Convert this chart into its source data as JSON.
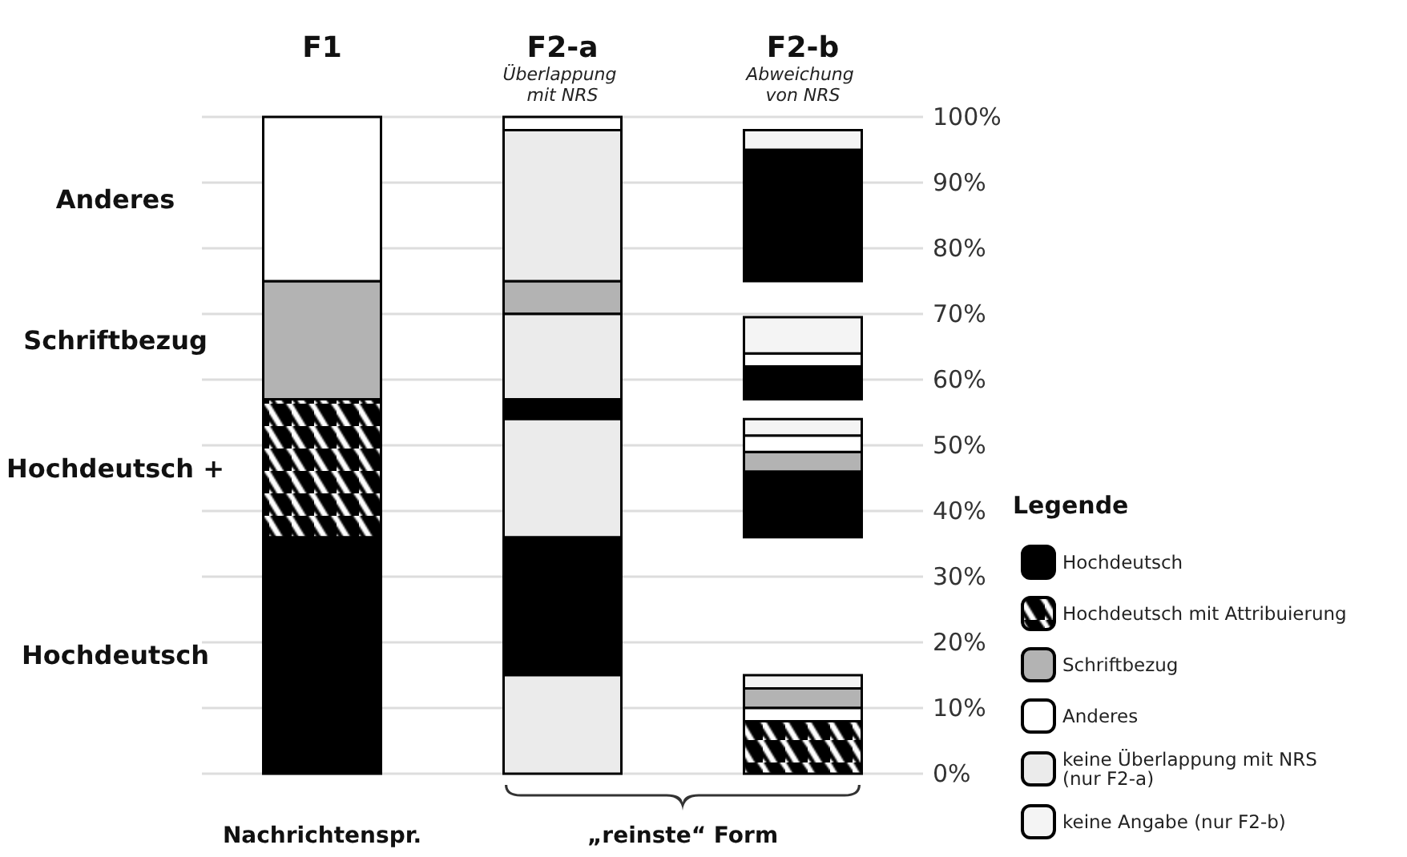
{
  "chart_data": {
    "type": "bar",
    "categories": [
      "F1",
      "F2-a",
      "F2-b"
    ],
    "legend_title": "Legende",
    "annotations": [
      "Anderes",
      "Schriftbezug",
      "Hochdeutsch +",
      "Hochdeutsch",
      "Überlappung mit NRS",
      "Abweichung von NRS",
      "Nachrichtenspr.",
      "„reinste“ Form"
    ],
    "series": [
      {
        "name": "Hochdeutsch",
        "color": "#000000",
        "values": [
          36,
          21,
          10
        ],
        "base": [
          0,
          15,
          36
        ]
      },
      {
        "name": "Hochdeutsch mit Attribuierung",
        "color": "#000000",
        "values": [
          21,
          null,
          8
        ],
        "base": [
          36,
          null,
          0
        ]
      },
      {
        "name": "Schriftbezug",
        "color": "#b3b3b3",
        "values": [
          18,
          5,
          3
        ],
        "base": [
          57,
          70,
          10
        ]
      },
      {
        "name": "Anderes",
        "color": "#ffffff",
        "values": [
          25,
          2,
          2
        ],
        "base": [
          75,
          98,
          8
        ]
      },
      {
        "name": "keine Überlappung mit NRS (nur F2-a)",
        "color": "#ebebeb",
        "values": [
          null,
          15,
          null
        ],
        "base": [
          null,
          0,
          null
        ]
      },
      {
        "name": "keine Angabe (nur F2-b)",
        "color": "#f4f4f4",
        "values": [
          null,
          null,
          2
        ],
        "base": [
          null,
          null,
          13
        ]
      },
      {
        "color": "#000000",
        "values": [
          null,
          3,
          5
        ],
        "base": [
          null,
          54,
          57
        ]
      },
      {
        "color": "#000000",
        "values": [
          null,
          null,
          20
        ],
        "base": [
          null,
          null,
          75
        ]
      },
      {
        "color": "#b3b3b3",
        "values": [
          null,
          null,
          3
        ],
        "base": [
          null,
          null,
          46
        ]
      },
      {
        "color": "#ffffff",
        "values": [
          null,
          null,
          2.5
        ],
        "base": [
          null,
          null,
          49
        ]
      },
      {
        "color": "#ffffff",
        "values": [
          null,
          null,
          2
        ],
        "base": [
          null,
          null,
          62
        ]
      },
      {
        "color": "#ebebeb",
        "values": [
          null,
          18,
          null
        ],
        "base": [
          null,
          36,
          null
        ]
      },
      {
        "color": "#ebebeb",
        "values": [
          null,
          13,
          null
        ],
        "base": [
          null,
          57,
          null
        ]
      },
      {
        "color": "#ebebeb",
        "values": [
          null,
          23,
          null
        ],
        "base": [
          null,
          75,
          null
        ]
      },
      {
        "color": "#f4f4f4",
        "values": [
          null,
          null,
          2.5
        ],
        "base": [
          null,
          null,
          51.5
        ]
      },
      {
        "color": "#f4f4f4",
        "values": [
          null,
          null,
          5.5
        ],
        "base": [
          null,
          null,
          64
        ]
      },
      {
        "color": "#f4f4f4",
        "values": [
          null,
          null,
          3
        ],
        "base": [
          null,
          null,
          95
        ]
      }
    ],
    "ylim": [
      0,
      100
    ],
    "yticks": [
      {
        "value": 0,
        "label": "0%"
      },
      {
        "value": 10,
        "label": "10%"
      },
      {
        "value": 20,
        "label": "20%"
      },
      {
        "value": 30,
        "label": "30%"
      },
      {
        "value": 40,
        "label": "40%"
      },
      {
        "value": 50,
        "label": "50%"
      },
      {
        "value": 60,
        "label": "60%"
      },
      {
        "value": 70,
        "label": "70%"
      },
      {
        "value": 80,
        "label": "80%"
      },
      {
        "value": 90,
        "label": "90%"
      },
      {
        "value": 100,
        "label": "100%"
      }
    ],
    "grid": "y",
    "legend": "right"
  }
}
